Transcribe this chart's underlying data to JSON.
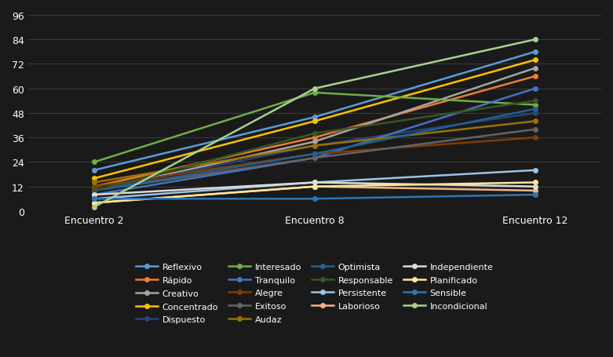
{
  "x_labels": [
    "Encuentro 2",
    "Encuentro 8",
    "Encuentro 12"
  ],
  "x_positions": [
    0,
    1,
    2
  ],
  "series": [
    {
      "name": "Reflexivo",
      "color": "#5B9BD5",
      "values": [
        20,
        46,
        78
      ]
    },
    {
      "name": "Rápido",
      "color": "#ED7D31",
      "values": [
        12,
        36,
        66
      ]
    },
    {
      "name": "Creativo",
      "color": "#A5A5A5",
      "values": [
        10,
        34,
        70
      ]
    },
    {
      "name": "Concentrado",
      "color": "#FFC000",
      "values": [
        16,
        44,
        74
      ]
    },
    {
      "name": "Dispuesto",
      "color": "#264478",
      "values": [
        10,
        32,
        48
      ]
    },
    {
      "name": "Interesado",
      "color": "#70AD47",
      "values": [
        24,
        58,
        52
      ]
    },
    {
      "name": "Tranquilo",
      "color": "#4472C4",
      "values": [
        8,
        26,
        60
      ]
    },
    {
      "name": "Alegre",
      "color": "#833C00",
      "values": [
        12,
        28,
        36
      ]
    },
    {
      "name": "Exitoso",
      "color": "#636363",
      "values": [
        10,
        26,
        40
      ]
    },
    {
      "name": "Audaz",
      "color": "#997300",
      "values": [
        14,
        32,
        44
      ]
    },
    {
      "name": "Optimista",
      "color": "#255E91",
      "values": [
        10,
        28,
        50
      ]
    },
    {
      "name": "Responsable",
      "color": "#375623",
      "values": [
        10,
        38,
        54
      ]
    },
    {
      "name": "Persistente",
      "color": "#9DC3E6",
      "values": [
        6,
        14,
        20
      ]
    },
    {
      "name": "Laborioso",
      "color": "#F4B183",
      "values": [
        4,
        12,
        10
      ]
    },
    {
      "name": "Independiente",
      "color": "#DBDBDB",
      "values": [
        8,
        14,
        12
      ]
    },
    {
      "name": "Planificado",
      "color": "#FFE699",
      "values": [
        4,
        12,
        14
      ]
    },
    {
      "name": "Sensible",
      "color": "#2E75B6",
      "values": [
        6,
        6,
        8
      ]
    },
    {
      "name": "Incondicional",
      "color": "#A9D18E",
      "values": [
        2,
        60,
        84
      ]
    }
  ],
  "ylim": [
    0,
    96
  ],
  "yticks": [
    0,
    12,
    24,
    36,
    48,
    60,
    72,
    84,
    96
  ],
  "background_color": "#1A1A1A",
  "plot_bg_color": "#1A1A1A",
  "grid_color": "#3A3A3A",
  "text_color": "#FFFFFF",
  "marker": "o",
  "marker_size": 4,
  "line_width": 1.8
}
